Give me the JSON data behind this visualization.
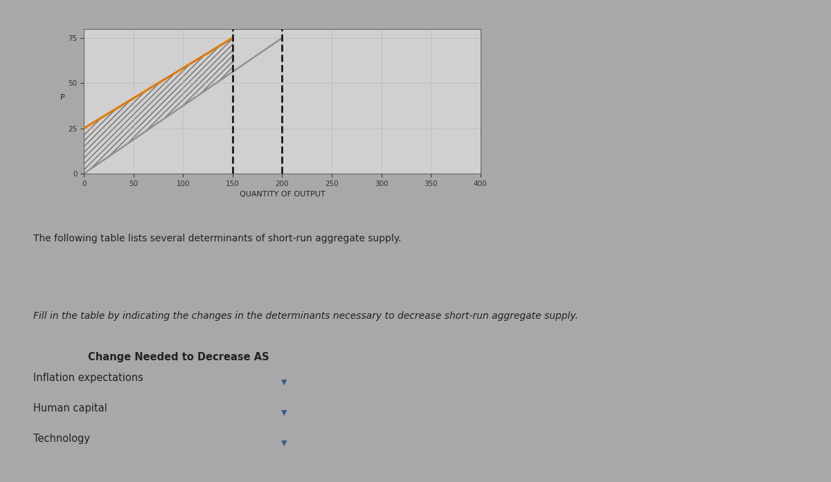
{
  "page_bg": "#a8a8a8",
  "graph_panel_bg": "#c8c8c8",
  "graph_plot_bg": "#d0d0d0",
  "graph_border_color": "#888888",
  "y_label": "P",
  "x_label": "QUANTITY OF OUTPUT",
  "y_ticks": [
    0,
    25,
    50,
    75
  ],
  "x_ticks": [
    0,
    50,
    100,
    150,
    200,
    250,
    300,
    350,
    400
  ],
  "xlim": [
    0,
    400
  ],
  "ylim": [
    0,
    80
  ],
  "orange_line_x": [
    0,
    150
  ],
  "orange_line_y": [
    25,
    75
  ],
  "orange_color": "#e07800",
  "orange_lw": 2.2,
  "gray_line_x": [
    0,
    200
  ],
  "gray_line_y": [
    0,
    75
  ],
  "gray_line_color": "#909090",
  "gray_line_lw": 1.8,
  "dashed_line1_x": 150,
  "dashed_line2_x": 200,
  "dashed_color": "#1a1a1a",
  "dashed_lw": 2.0,
  "hatch_edgecolor": "#707070",
  "gold_bar_color": "#c8aa60",
  "text1": "The following table lists several determinants of short-run aggregate supply.",
  "text2": "Fill in the table by indicating the changes in the determinants necessary to decrease short-run aggregate supply.",
  "table_header": "Change Needed to Decrease AS",
  "table_rows": [
    "Inflation expectations",
    "Human capital",
    "Technology"
  ],
  "dropdown_color": "#3a5a8a",
  "label_fontsize": 8,
  "tick_fontsize": 7.5,
  "text1_fontsize": 10,
  "text2_fontsize": 10,
  "table_header_fontsize": 10.5,
  "table_row_fontsize": 10.5,
  "grid_color": "#b8b8b8",
  "grid_lw": 0.5
}
